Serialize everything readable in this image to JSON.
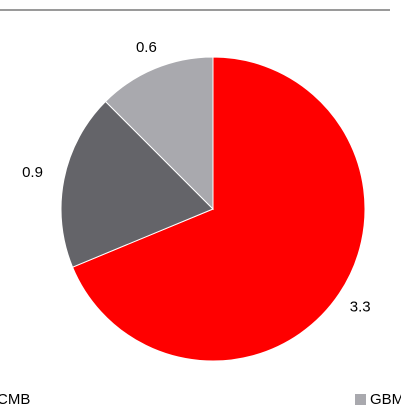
{
  "chart_data": {
    "type": "pie",
    "categories": [
      null,
      "CMB",
      "GBM"
    ],
    "values": [
      3.3,
      0.9,
      0.6
    ],
    "colors": [
      "#ff0000",
      "#646469",
      "#a9a9ae"
    ],
    "start_angle": 0,
    "direction": "clockwise"
  }
}
